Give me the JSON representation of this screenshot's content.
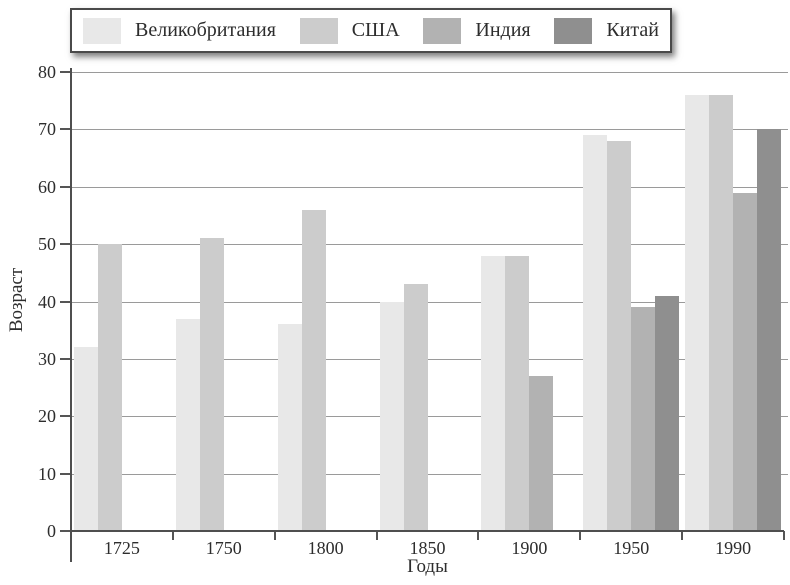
{
  "chart_data": {
    "type": "bar",
    "categories": [
      "1725",
      "1750",
      "1800",
      "1850",
      "1900",
      "1950",
      "1990"
    ],
    "series": [
      {
        "name": "Великобритания",
        "color": "#e8e8e8",
        "values": [
          32,
          37,
          36,
          40,
          48,
          69,
          76
        ]
      },
      {
        "name": "США",
        "color": "#cccccc",
        "values": [
          50,
          51,
          56,
          43,
          48,
          68,
          76
        ]
      },
      {
        "name": "Индия",
        "color": "#b2b2b2",
        "values": [
          null,
          null,
          null,
          null,
          27,
          39,
          59
        ]
      },
      {
        "name": "Китай",
        "color": "#8f8f8f",
        "values": [
          null,
          null,
          null,
          null,
          null,
          41,
          70
        ]
      }
    ],
    "xlabel": "Годы",
    "ylabel": "Возраст",
    "ylim": [
      0,
      80
    ],
    "ytick_step": 10,
    "yticks": [
      "0",
      "10",
      "20",
      "30",
      "40",
      "50",
      "60",
      "70",
      "80"
    ],
    "grid": "horizontal",
    "legend_position": "top",
    "colors": {
      "axis": "#4f4f4f",
      "gridline": "#9a9a9a",
      "text": "#2d2d2d",
      "background": "#ffffff"
    }
  }
}
